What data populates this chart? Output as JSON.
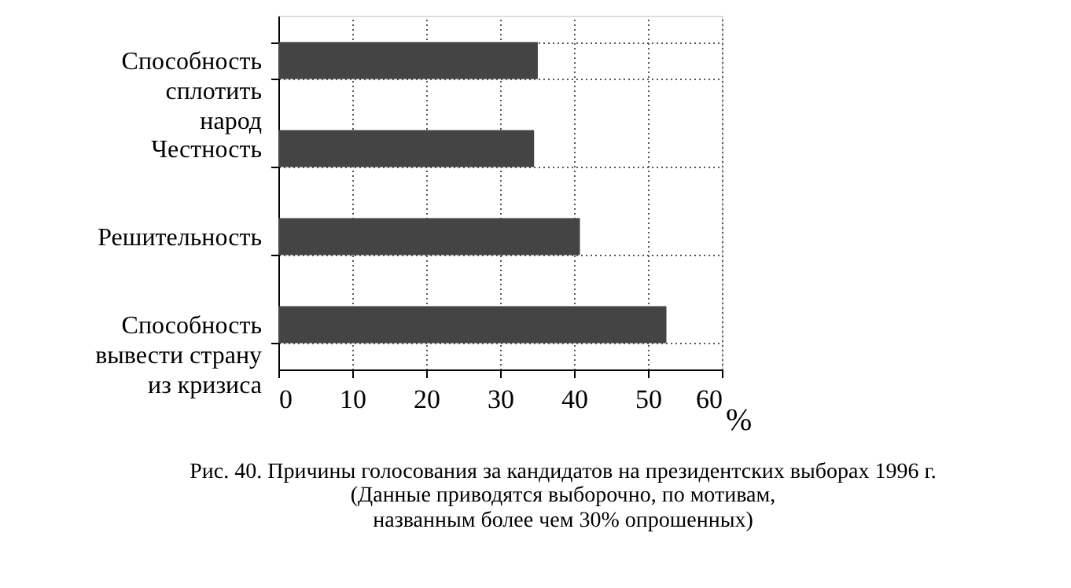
{
  "chart_data": {
    "type": "bar",
    "orientation": "horizontal",
    "title": "Рис. 40.  Причины голосования за кандидатов на президентских  выборах 1996 г.",
    "subtitle": [
      "(Данные приводятся выборочно, по мотивам,",
      "названным более чем 30% опрошенных)"
    ],
    "xlabel": "%",
    "categories": [
      "Способность\nсплотить\nнарод",
      "Честность",
      "Решительность",
      "Способность\nвывести страну\nиз кризиса"
    ],
    "values": [
      35.1,
      34.6,
      40.8,
      52.5
    ],
    "color": "#444444",
    "xlim": [
      0,
      60
    ],
    "xticks": [
      0,
      10,
      20,
      30,
      40,
      50,
      60
    ],
    "grid": true
  }
}
